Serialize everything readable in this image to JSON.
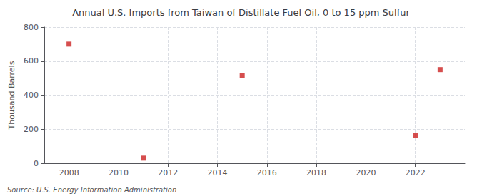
{
  "chart_data": {
    "type": "scatter",
    "title": "Annual U.S. Imports from Taiwan of Distillate Fuel Oil, 0 to 15 ppm Sulfur",
    "ylabel": "Thousand Barrels",
    "annotations": [
      "Source: U.S. Energy Information Administration"
    ],
    "x": [
      2008,
      2011,
      2015,
      2022,
      2023
    ],
    "values": [
      700,
      30,
      515,
      163,
      550
    ],
    "color": "#cc2222",
    "marker": "square",
    "xlim": [
      2007,
      2024
    ],
    "xticks": [
      2008,
      2010,
      2012,
      2014,
      2016,
      2018,
      2020,
      2022
    ],
    "ylim": [
      0,
      800
    ],
    "yticks": [
      0,
      200,
      400,
      600,
      800
    ],
    "grid": true
  }
}
